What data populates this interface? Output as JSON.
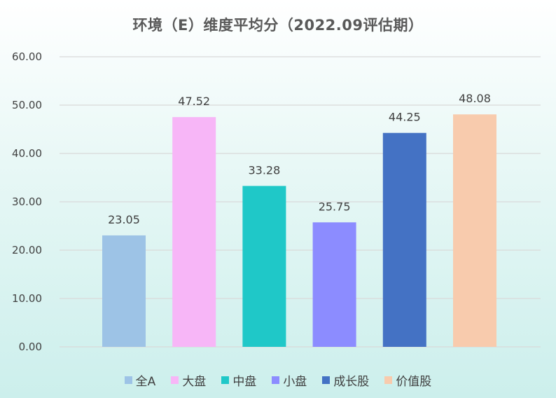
{
  "chart_data": {
    "type": "bar",
    "title": "环境（E）维度平均分（2022.09评估期）",
    "categories": [
      "全A",
      "大盘",
      "中盘",
      "小盘",
      "成长股",
      "价值股"
    ],
    "values": [
      23.05,
      47.52,
      33.28,
      25.75,
      44.25,
      48.08
    ],
    "value_labels": [
      "23.05",
      "47.52",
      "33.28",
      "25.75",
      "44.25",
      "48.08"
    ],
    "colors": [
      "#9dc3e6",
      "#f7b6f7",
      "#1fc8c8",
      "#8c8cff",
      "#4472c4",
      "#f8cbad"
    ],
    "ylim": [
      0,
      60
    ],
    "yticks": [
      "0.00",
      "10.00",
      "20.00",
      "30.00",
      "40.00",
      "50.00",
      "60.00"
    ],
    "grid": true,
    "legend_position": "bottom",
    "xlabel": "",
    "ylabel": ""
  }
}
